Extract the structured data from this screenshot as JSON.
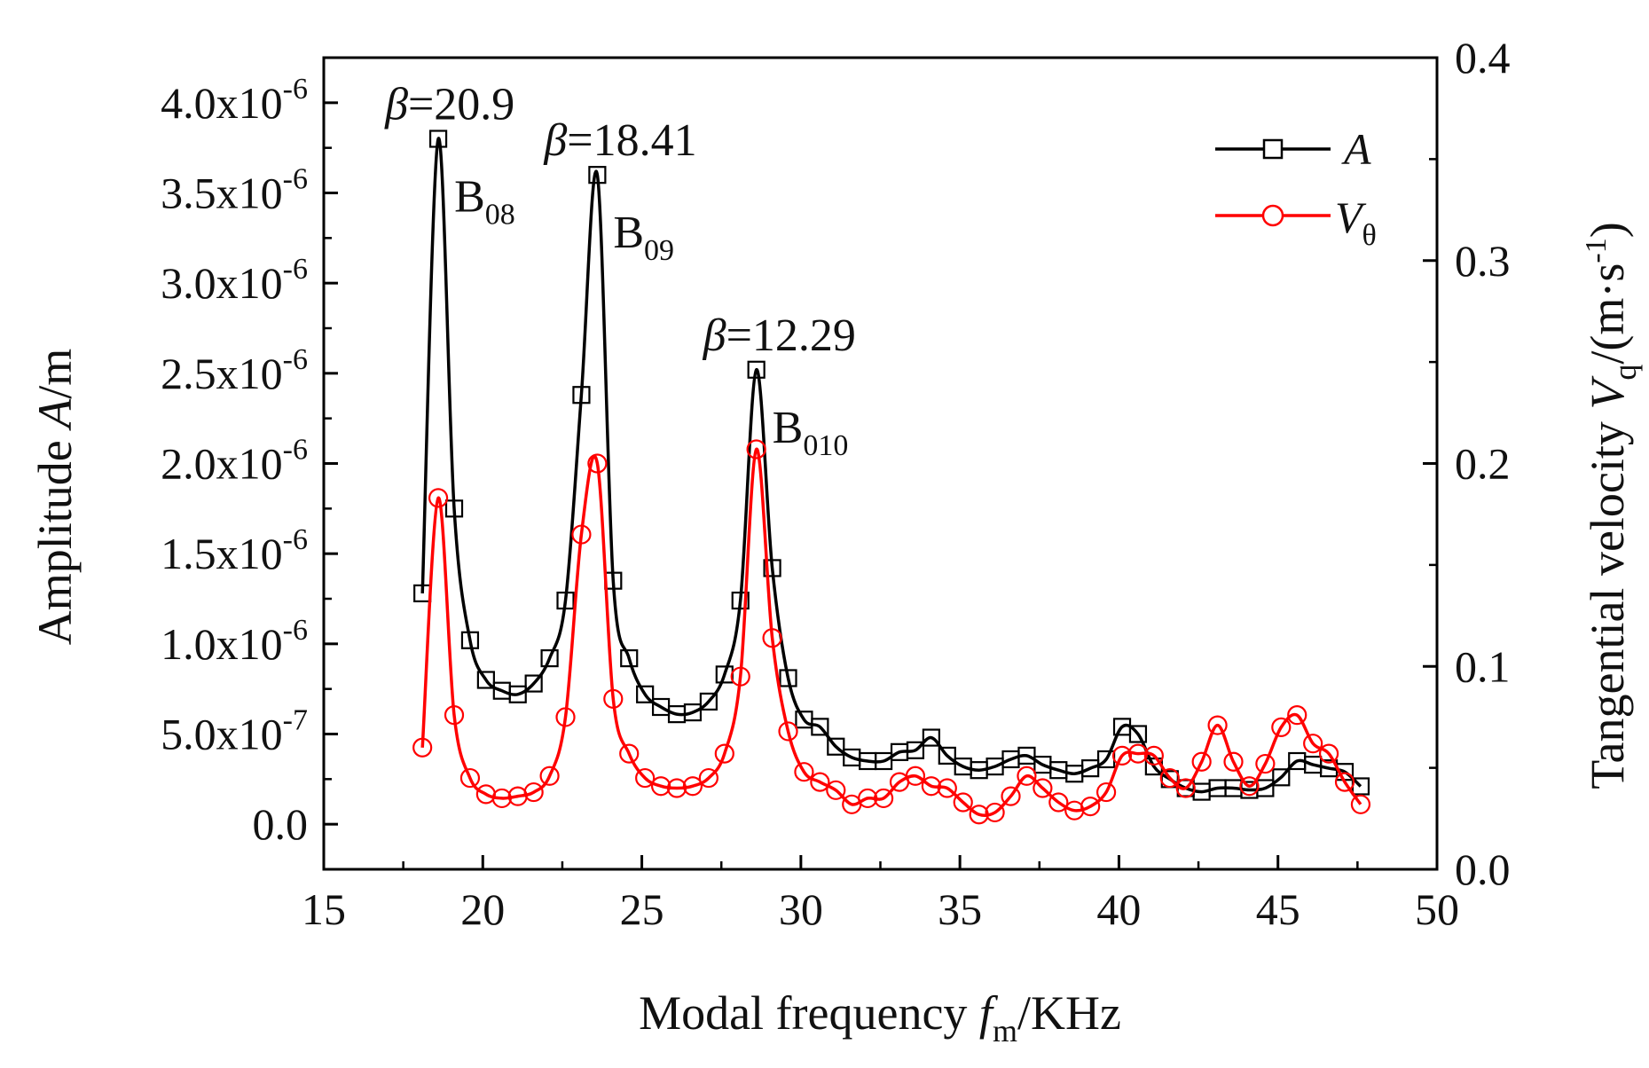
{
  "chart_data": {
    "type": "line",
    "x": [
      18.1,
      18.6,
      19.1,
      19.6,
      20.1,
      20.6,
      21.1,
      21.6,
      22.1,
      22.6,
      23.1,
      23.6,
      24.1,
      24.6,
      25.1,
      25.6,
      26.1,
      26.6,
      27.1,
      27.6,
      28.1,
      28.6,
      29.1,
      29.6,
      30.1,
      30.6,
      31.1,
      31.6,
      32.1,
      32.6,
      33.1,
      33.6,
      34.1,
      34.6,
      35.1,
      35.6,
      36.1,
      36.6,
      37.1,
      37.6,
      38.1,
      38.6,
      39.1,
      39.6,
      40.1,
      40.6,
      41.1,
      41.6,
      42.1,
      42.6,
      43.1,
      43.6,
      44.1,
      44.6,
      45.1,
      45.6,
      46.1,
      46.6,
      47.1,
      47.6
    ],
    "series": [
      {
        "name": "A",
        "axis": "left",
        "color": "#000000",
        "marker": "square",
        "values": [
          1.28e-06,
          3.8e-06,
          1.75e-06,
          1.02e-06,
          8e-07,
          7.4e-07,
          7.2e-07,
          7.8e-07,
          9.2e-07,
          1.24e-06,
          2.38e-06,
          3.6e-06,
          1.35e-06,
          9.2e-07,
          7.2e-07,
          6.5e-07,
          6.1e-07,
          6.2e-07,
          6.8e-07,
          8.3e-07,
          1.24e-06,
          2.52e-06,
          1.42e-06,
          8.1e-07,
          5.8e-07,
          5.4e-07,
          4.3e-07,
          3.7e-07,
          3.5e-07,
          3.5e-07,
          4e-07,
          4.1e-07,
          4.8e-07,
          3.8e-07,
          3.2e-07,
          3e-07,
          3.2e-07,
          3.6e-07,
          3.8e-07,
          3.3e-07,
          3e-07,
          2.8e-07,
          3.1e-07,
          3.6e-07,
          5.4e-07,
          5e-07,
          3.2e-07,
          2.5e-07,
          2e-07,
          1.8e-07,
          2e-07,
          2e-07,
          1.9e-07,
          2e-07,
          2.6e-07,
          3.5e-07,
          3.3e-07,
          3.1e-07,
          2.9e-07,
          2.1e-07
        ]
      },
      {
        "name": "Vθ",
        "axis": "right",
        "color": "#ff0000",
        "marker": "circle",
        "values": [
          0.06,
          0.183,
          0.076,
          0.045,
          0.037,
          0.035,
          0.036,
          0.038,
          0.046,
          0.075,
          0.165,
          0.2,
          0.084,
          0.057,
          0.045,
          0.041,
          0.04,
          0.041,
          0.045,
          0.057,
          0.095,
          0.207,
          0.114,
          0.068,
          0.048,
          0.043,
          0.039,
          0.032,
          0.035,
          0.035,
          0.043,
          0.046,
          0.041,
          0.04,
          0.033,
          0.027,
          0.028,
          0.036,
          0.046,
          0.04,
          0.033,
          0.029,
          0.031,
          0.038,
          0.056,
          0.057,
          0.056,
          0.045,
          0.04,
          0.053,
          0.071,
          0.053,
          0.041,
          0.052,
          0.07,
          0.076,
          0.062,
          0.057,
          0.043,
          0.032
        ]
      }
    ],
    "xlabel": {
      "main": "Modal frequency ",
      "symbol": "f",
      "sub": "m",
      "unit": "/KHz"
    },
    "ylabel_left": {
      "main": "Amplitude ",
      "symbol": "A",
      "unit": "/m"
    },
    "ylabel_right": {
      "main": "Tangential velocity ",
      "symbol": "V",
      "sub": "q",
      "unit_open": "/(m·s",
      "sup": "-1",
      "unit_close": ")"
    },
    "xlim": [
      15,
      50
    ],
    "ylim_left": [
      -2.5e-07,
      4.25e-06
    ],
    "ylim_right": [
      0.0,
      0.4
    ],
    "x_ticks": [
      "15",
      "20",
      "25",
      "30",
      "35",
      "40",
      "45",
      "50"
    ],
    "y_left_ticks": [
      {
        "mantissa": "0.0",
        "exp": ""
      },
      {
        "mantissa": "5.0x10",
        "exp": "-7"
      },
      {
        "mantissa": "1.0x10",
        "exp": "-6"
      },
      {
        "mantissa": "1.5x10",
        "exp": "-6"
      },
      {
        "mantissa": "2.0x10",
        "exp": "-6"
      },
      {
        "mantissa": "2.5x10",
        "exp": "-6"
      },
      {
        "mantissa": "3.0x10",
        "exp": "-6"
      },
      {
        "mantissa": "3.5x10",
        "exp": "-6"
      },
      {
        "mantissa": "4.0x10",
        "exp": "-6"
      }
    ],
    "y_right_ticks": [
      "0.0",
      "0.1",
      "0.2",
      "0.3",
      "0.4"
    ],
    "annotations": [
      {
        "beta": "β",
        "value": "=20.9",
        "mode_base": "B",
        "mode_sub": "08",
        "x": 18.6
      },
      {
        "beta": "β",
        "value": "=18.41",
        "mode_base": "B",
        "mode_sub": "09",
        "x": 23.6
      },
      {
        "beta": "β",
        "value": "=12.29",
        "mode_base": "B",
        "mode_sub": "010",
        "x": 28.6
      }
    ],
    "legend": {
      "position": "top-right",
      "entries": [
        {
          "base": "A",
          "sub": ""
        },
        {
          "base": "V",
          "sub": "θ"
        }
      ]
    },
    "grid": false
  }
}
